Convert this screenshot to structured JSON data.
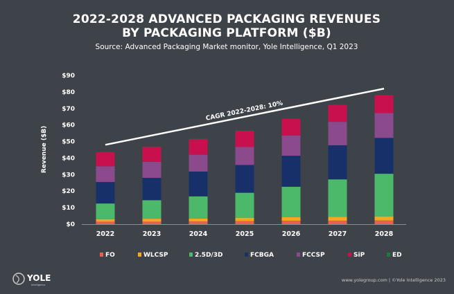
{
  "header": {
    "title_line1": "2022-2028 ADVANCED PACKAGING REVENUES",
    "title_line2": "BY PACKAGING PLATFORM ($B)",
    "source": "Source: Advanced Packaging Market monitor, Yole Intelligence, Q1 2023"
  },
  "footer": {
    "logo_text": "YOLE",
    "logo_subtext": "Intelligence",
    "credit": "www.yolegroup.com | ©Yole Intelligence 2023"
  },
  "colors": {
    "background": "#3e434a"
  },
  "chart_data": {
    "type": "bar",
    "stacked": true,
    "title": "2022-2028 ADVANCED PACKAGING REVENUES BY PACKAGING PLATFORM ($B)",
    "xlabel": "",
    "ylabel": "Revenue ($B)",
    "ylim": [
      0,
      90
    ],
    "yticks": [
      "$0",
      "$10",
      "$20",
      "$30",
      "$40",
      "$50",
      "$60",
      "$70",
      "$80",
      "$90"
    ],
    "grid": false,
    "legend_position": "bottom",
    "categories": [
      "2022",
      "2023",
      "2024",
      "2025",
      "2026",
      "2027",
      "2028"
    ],
    "series": [
      {
        "name": "FO",
        "color": "#e8604f",
        "values": [
          1.5,
          1.5,
          1.6,
          1.8,
          2.1,
          2.1,
          2.2
        ]
      },
      {
        "name": "WLCSP",
        "color": "#f5a623",
        "values": [
          1.5,
          1.8,
          1.8,
          2.1,
          2.1,
          2.4,
          2.5
        ]
      },
      {
        "name": "2.5D/3D",
        "color": "#4cb86a",
        "values": [
          9.5,
          11.2,
          13.4,
          15.1,
          18.4,
          22.6,
          25.8
        ]
      },
      {
        "name": "FCBGA",
        "color": "#17306a",
        "values": [
          13.0,
          13.5,
          15.0,
          16.8,
          18.8,
          20.6,
          21.7
        ]
      },
      {
        "name": "FCCSP",
        "color": "#8a4a8c",
        "values": [
          9.5,
          9.7,
          10.2,
          10.9,
          12.2,
          14.2,
          15.0
        ]
      },
      {
        "name": "SiP",
        "color": "#c8104f",
        "values": [
          8.5,
          9.0,
          9.5,
          9.8,
          10.1,
          10.2,
          10.8
        ]
      },
      {
        "name": "ED",
        "color": "#1f7a3a",
        "values": [
          0.1,
          0.1,
          0.1,
          0.1,
          0.1,
          0.1,
          0.1
        ]
      }
    ],
    "annotation": {
      "text": "CAGR 2022-2028: 10%",
      "from": [
        "2022",
        48
      ],
      "to": [
        "2028",
        82
      ]
    }
  }
}
